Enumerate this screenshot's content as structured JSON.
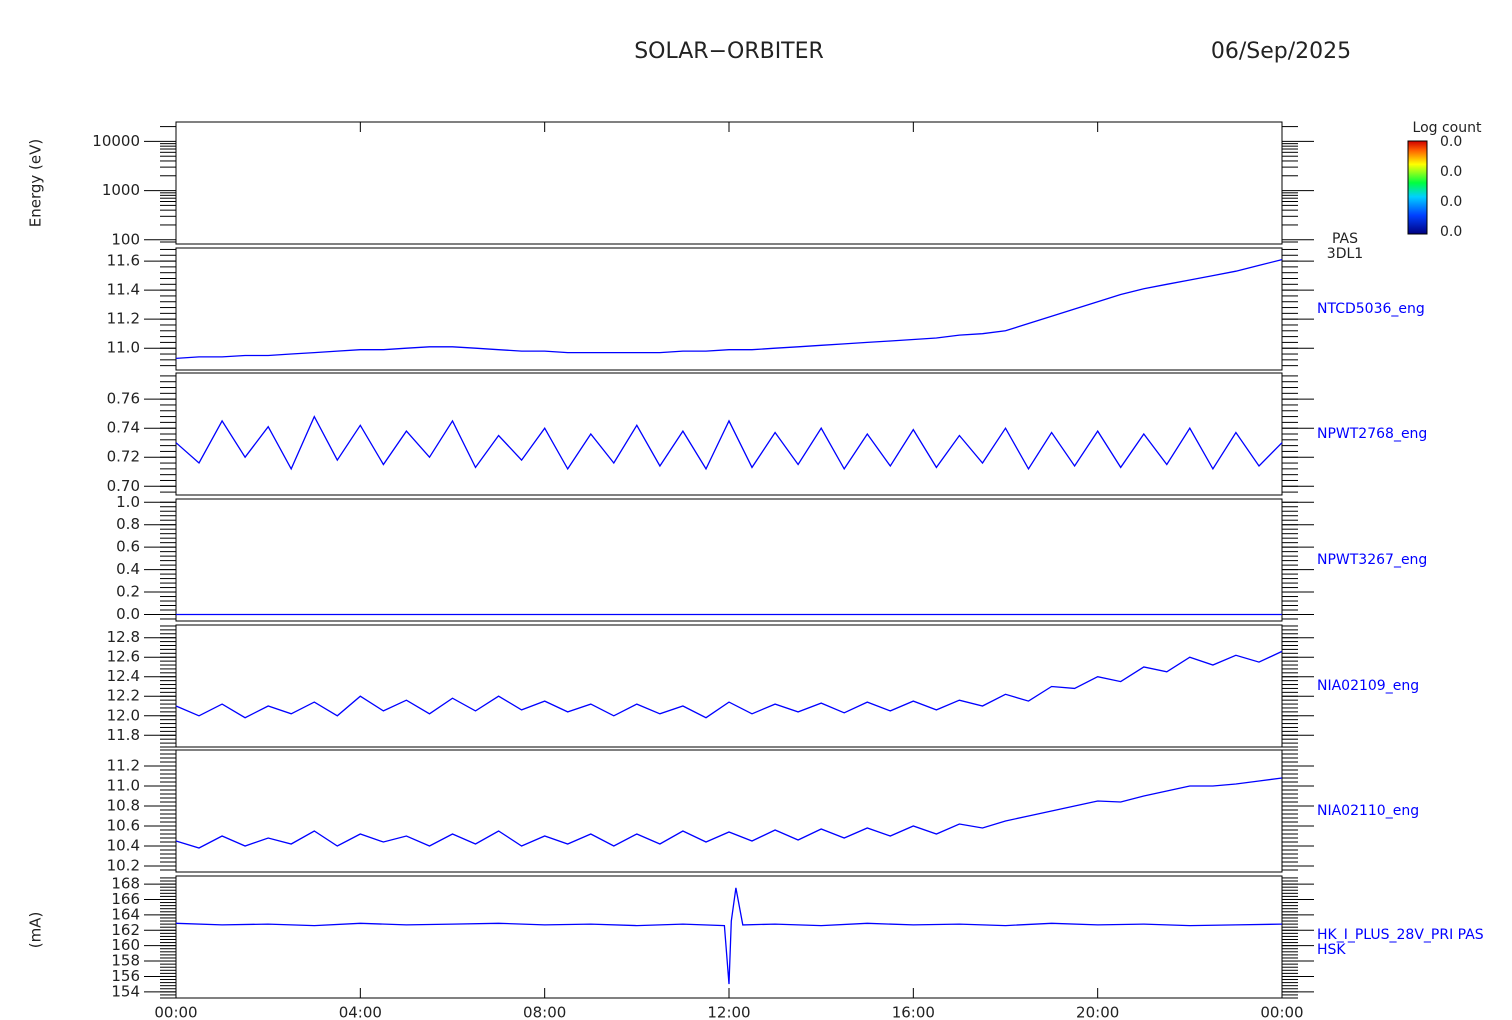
{
  "header": {
    "title": "SOLAR−ORBITER",
    "date": "06/Sep/2025",
    "ylabels": [
      "Energy (eV)",
      "(mA)"
    ]
  },
  "chart_data": [
    {
      "type": "spectrogram",
      "xlim": [
        0,
        24
      ],
      "ylim": [
        82,
        24800
      ],
      "log": true,
      "yticks": [
        100,
        1000,
        10000
      ],
      "label_lines": [
        "PAS",
        "3DL1"
      ],
      "colorbar_title": "Log count",
      "colorbar_labels": [
        "0.0",
        "0.0",
        "0.0",
        "0.0"
      ]
    },
    {
      "type": "line",
      "xlim": [
        0,
        24
      ],
      "ylim": [
        10.85,
        11.69
      ],
      "yticks": [
        {
          "value": 11.0,
          "label": "11.0"
        },
        11.2,
        11.4,
        11.6
      ],
      "x": [
        0,
        0.5,
        1,
        1.5,
        2,
        2.5,
        3,
        3.5,
        4,
        4.5,
        5,
        5.5,
        6,
        6.5,
        7,
        7.5,
        8,
        8.5,
        9,
        9.5,
        10,
        10.5,
        11,
        11.5,
        12,
        12.5,
        13,
        13.5,
        14,
        14.5,
        15,
        15.5,
        16,
        16.5,
        17,
        17.5,
        18,
        18.5,
        19,
        19.5,
        20,
        20.5,
        21,
        21.5,
        22,
        22.5,
        23,
        23.5,
        24
      ],
      "series": [
        {
          "name": "NTCD5036_eng",
          "color": "#0000ff",
          "values": [
            10.93,
            10.94,
            10.94,
            10.95,
            10.95,
            10.96,
            10.97,
            10.98,
            10.99,
            10.99,
            11.0,
            11.01,
            11.01,
            11.0,
            10.99,
            10.98,
            10.98,
            10.97,
            10.97,
            10.97,
            10.97,
            10.97,
            10.98,
            10.98,
            10.99,
            10.99,
            11.0,
            11.01,
            11.02,
            11.03,
            11.04,
            11.05,
            11.06,
            11.07,
            11.09,
            11.1,
            11.12,
            11.17,
            11.22,
            11.27,
            11.32,
            11.37,
            11.41,
            11.44,
            11.47,
            11.5,
            11.53,
            11.57,
            11.61
          ]
        }
      ]
    },
    {
      "type": "line",
      "xlim": [
        0,
        24
      ],
      "ylim": [
        0.694,
        0.778
      ],
      "yticks": [
        {
          "value": 0.7,
          "label": "0.70"
        },
        0.72,
        0.74,
        0.76
      ],
      "x": [
        0,
        0.5,
        1,
        1.5,
        2,
        2.5,
        3,
        3.5,
        4,
        4.5,
        5,
        5.5,
        6,
        6.5,
        7,
        7.5,
        8,
        8.5,
        9,
        9.5,
        10,
        10.5,
        11,
        11.5,
        12,
        12.5,
        13,
        13.5,
        14,
        14.5,
        15,
        15.5,
        16,
        16.5,
        17,
        17.5,
        18,
        18.5,
        19,
        19.5,
        20,
        20.5,
        21,
        21.5,
        22,
        22.5,
        23,
        23.5,
        24
      ],
      "series": [
        {
          "name": "NPWT2768_eng",
          "color": "#0000ff",
          "values": [
            0.73,
            0.716,
            0.745,
            0.72,
            0.741,
            0.712,
            0.748,
            0.718,
            0.742,
            0.715,
            0.738,
            0.72,
            0.745,
            0.713,
            0.735,
            0.718,
            0.74,
            0.712,
            0.736,
            0.716,
            0.742,
            0.714,
            0.738,
            0.712,
            0.745,
            0.713,
            0.737,
            0.715,
            0.74,
            0.712,
            0.736,
            0.714,
            0.739,
            0.713,
            0.735,
            0.716,
            0.74,
            0.712,
            0.737,
            0.714,
            0.738,
            0.713,
            0.736,
            0.715,
            0.74,
            0.712,
            0.737,
            0.714,
            0.73
          ]
        }
      ]
    },
    {
      "type": "line",
      "xlim": [
        0,
        24
      ],
      "ylim": [
        -0.058,
        1.029
      ],
      "yticks": [
        {
          "value": 0,
          "label": "0.0"
        },
        0.2,
        0.4,
        0.6,
        0.8,
        {
          "value": 1,
          "label": "1.0"
        }
      ],
      "x": [
        0,
        24
      ],
      "series": [
        {
          "name": "NPWT3267_eng",
          "color": "#0000ff",
          "values": [
            0,
            0
          ]
        }
      ]
    },
    {
      "type": "line",
      "xlim": [
        0,
        24
      ],
      "ylim": [
        11.68,
        12.93
      ],
      "yticks": [
        11.8,
        {
          "value": 12,
          "label": "12.0"
        },
        12.2,
        12.4,
        12.6,
        12.8
      ],
      "x": [
        0,
        0.5,
        1,
        1.5,
        2,
        2.5,
        3,
        3.5,
        4,
        4.5,
        5,
        5.5,
        6,
        6.5,
        7,
        7.5,
        8,
        8.5,
        9,
        9.5,
        10,
        10.5,
        11,
        11.5,
        12,
        12.5,
        13,
        13.5,
        14,
        14.5,
        15,
        15.5,
        16,
        16.5,
        17,
        17.5,
        18,
        18.5,
        19,
        19.5,
        20,
        20.5,
        21,
        21.5,
        22,
        22.5,
        23,
        23.5,
        24
      ],
      "series": [
        {
          "name": "NIA02109_eng",
          "color": "#0000ff",
          "values": [
            12.1,
            12.0,
            12.12,
            11.98,
            12.1,
            12.02,
            12.14,
            12.0,
            12.2,
            12.05,
            12.16,
            12.02,
            12.18,
            12.05,
            12.2,
            12.06,
            12.15,
            12.04,
            12.12,
            12.0,
            12.12,
            12.02,
            12.1,
            11.98,
            12.14,
            12.02,
            12.12,
            12.04,
            12.13,
            12.03,
            12.14,
            12.05,
            12.15,
            12.06,
            12.16,
            12.1,
            12.22,
            12.15,
            12.3,
            12.28,
            12.4,
            12.35,
            12.5,
            12.45,
            12.6,
            12.52,
            12.62,
            12.55,
            12.66
          ]
        }
      ]
    },
    {
      "type": "line",
      "xlim": [
        0,
        24
      ],
      "ylim": [
        10.14,
        11.36
      ],
      "yticks": [
        10.2,
        10.4,
        10.6,
        10.8,
        {
          "value": 11,
          "label": "11.0"
        },
        11.2
      ],
      "x": [
        0,
        0.5,
        1,
        1.5,
        2,
        2.5,
        3,
        3.5,
        4,
        4.5,
        5,
        5.5,
        6,
        6.5,
        7,
        7.5,
        8,
        8.5,
        9,
        9.5,
        10,
        10.5,
        11,
        11.5,
        12,
        12.5,
        13,
        13.5,
        14,
        14.5,
        15,
        15.5,
        16,
        16.5,
        17,
        17.5,
        18,
        18.5,
        19,
        19.5,
        20,
        20.5,
        21,
        21.5,
        22,
        22.5,
        23,
        23.5,
        24
      ],
      "series": [
        {
          "name": "NIA02110_eng",
          "color": "#0000ff",
          "values": [
            10.45,
            10.38,
            10.5,
            10.4,
            10.48,
            10.42,
            10.55,
            10.4,
            10.52,
            10.44,
            10.5,
            10.4,
            10.52,
            10.42,
            10.55,
            10.4,
            10.5,
            10.42,
            10.52,
            10.4,
            10.52,
            10.42,
            10.55,
            10.44,
            10.54,
            10.45,
            10.56,
            10.46,
            10.57,
            10.48,
            10.58,
            10.5,
            10.6,
            10.52,
            10.62,
            10.58,
            10.65,
            10.7,
            10.75,
            10.8,
            10.85,
            10.84,
            10.9,
            10.95,
            11.0,
            11.0,
            11.02,
            11.05,
            11.08
          ]
        }
      ]
    },
    {
      "type": "line",
      "xlim": [
        0,
        24
      ],
      "ylim": [
        153.2,
        169.05
      ],
      "yticks": [
        154,
        156,
        158,
        160,
        162,
        164,
        166,
        168
      ],
      "xticks": [
        {
          "value": 0,
          "label": "00:00"
        },
        {
          "value": 4,
          "label": "04:00"
        },
        {
          "value": 8,
          "label": "08:00"
        },
        {
          "value": 12,
          "label": "12:00"
        },
        {
          "value": 16,
          "label": "16:00"
        },
        {
          "value": 20,
          "label": "20:00"
        },
        {
          "value": 24,
          "label": "00:00"
        }
      ],
      "x": [
        0,
        1,
        2,
        3,
        4,
        5,
        6,
        7,
        8,
        9,
        10,
        11,
        11.9,
        12.0,
        12.05,
        12.15,
        12.3,
        13,
        14,
        15,
        16,
        17,
        18,
        19,
        20,
        21,
        22,
        23,
        24
      ],
      "series": [
        {
          "name": "HK_I_PLUS_28V_PRI PAS",
          "sublabel": "HSK",
          "color": "#0000ff",
          "values": [
            162.9,
            162.7,
            162.8,
            162.6,
            162.9,
            162.7,
            162.8,
            162.9,
            162.7,
            162.8,
            162.6,
            162.8,
            162.6,
            155.0,
            163.2,
            167.5,
            162.7,
            162.8,
            162.6,
            162.9,
            162.7,
            162.8,
            162.6,
            162.9,
            162.7,
            162.8,
            162.6,
            162.7,
            162.8
          ]
        }
      ]
    }
  ]
}
